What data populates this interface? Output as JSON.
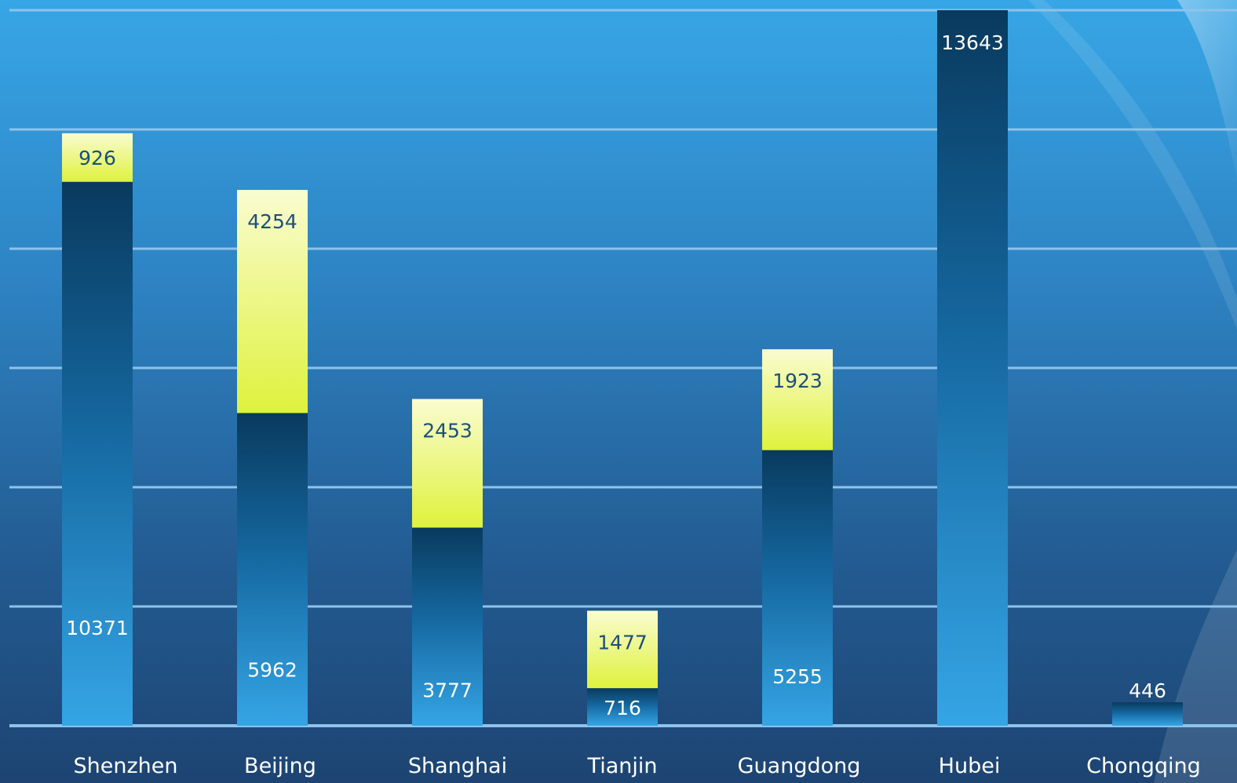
{
  "chart_data": {
    "type": "bar",
    "stacked": true,
    "categories": [
      "Shenzhen",
      "Beijing",
      "Shanghai",
      "Tianjin",
      "Guangdong",
      "Hubei",
      "Chongqing"
    ],
    "series": [
      {
        "values": [
          10371,
          5962,
          3777,
          716,
          5255,
          13643,
          446
        ]
      },
      {
        "values": [
          926,
          4254,
          2453,
          1477,
          1923,
          null,
          null
        ]
      }
    ],
    "ylim": [
      0,
      13643
    ],
    "grid": true,
    "legend": "none",
    "colors": {
      "base_dark": "#093a5e",
      "base_light": "#35a5e5",
      "top_light": "#fafcd0",
      "top_dark": "#def23c",
      "base_label": "#ffffff",
      "top_label": "#1b4f7a",
      "gridline": "#8ec3ea"
    }
  }
}
